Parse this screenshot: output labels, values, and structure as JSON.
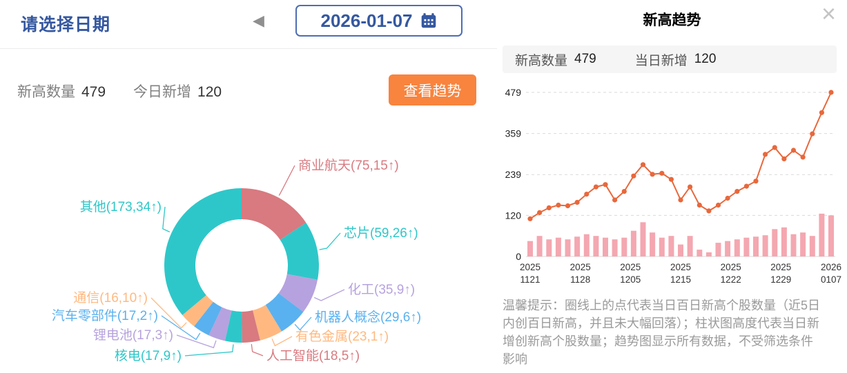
{
  "colors": {
    "primary_blue": "#3558a0",
    "button_orange": "#f8843e",
    "line_orange": "#e8683c",
    "bar_pink": "#f4a7b0",
    "teal": "#2ec7c9",
    "purple": "#b6a2de",
    "blue": "#5ab1ef",
    "orange": "#ffb980",
    "rose": "#d87a80"
  },
  "left_panel": {
    "date_picker": {
      "title": "请选择日期",
      "prev_icon": "◀",
      "date_value": "2026-01-07"
    },
    "stats": {
      "new_high_label": "新高数量",
      "new_high_value": "479",
      "today_added_label": "今日新增",
      "today_added_value": "120",
      "view_trend_button": "查看趋势"
    }
  },
  "trend_modal": {
    "title": "新高趋势",
    "close_icon": "×",
    "summary": {
      "new_high_label": "新高数量",
      "new_high_value": "479",
      "day_added_label": "当日新增",
      "day_added_value": "120"
    },
    "note": "温馨提示：圈线上的点代表当日百日新高个股数量（近5日内创百日新高，并且未大幅回落）；柱状图高度代表当日新增创新高个股数量；趋势图显示所有数据，不受筛选条件影响"
  },
  "chart_data": [
    {
      "type": "pie",
      "style": "donut",
      "total": 479,
      "segments": [
        {
          "label": "商业航天(75,15↑)",
          "name": "商业航天",
          "value": 75,
          "new": 15,
          "color": "#d87a80"
        },
        {
          "label": "芯片(59,26↑)",
          "name": "芯片",
          "value": 59,
          "new": 26,
          "color": "#2ec7c9"
        },
        {
          "label": "化工(35,9↑)",
          "name": "化工",
          "value": 35,
          "new": 9,
          "color": "#b6a2de"
        },
        {
          "label": "机器人概念(29,6↑)",
          "name": "机器人概念",
          "value": 29,
          "new": 6,
          "color": "#5ab1ef"
        },
        {
          "label": "有色金属(23,1↑)",
          "name": "有色金属",
          "value": 23,
          "new": 1,
          "color": "#ffb980"
        },
        {
          "label": "人工智能(18,5↑)",
          "name": "人工智能",
          "value": 18,
          "new": 5,
          "color": "#d87a80"
        },
        {
          "label": "核电(17,9↑)",
          "name": "核电",
          "value": 17,
          "new": 9,
          "color": "#2ec7c9"
        },
        {
          "label": "锂电池(17,3↑)",
          "name": "锂电池",
          "value": 17,
          "new": 3,
          "color": "#b6a2de"
        },
        {
          "label": "汽车零部件(17,2↑)",
          "name": "汽车零部件",
          "value": 17,
          "new": 2,
          "color": "#5ab1ef"
        },
        {
          "label": "通信(16,10↑)",
          "name": "通信",
          "value": 16,
          "new": 10,
          "color": "#ffb980"
        },
        {
          "label": "其他(173,34↑)",
          "name": "其他",
          "value": 173,
          "new": 34,
          "color": "#2ec7c9"
        }
      ]
    },
    {
      "type": "line+bar",
      "y_max": 479,
      "y_ticks": [
        0,
        120,
        239,
        359,
        479
      ],
      "x_tick_labels": [
        {
          "year": "2025",
          "date": "1121"
        },
        {
          "year": "2025",
          "date": "1128"
        },
        {
          "year": "2025",
          "date": "1205"
        },
        {
          "year": "2025",
          "date": "1215"
        },
        {
          "year": "2025",
          "date": "1222"
        },
        {
          "year": "2025",
          "date": "1229"
        },
        {
          "year": "2026",
          "date": "0107"
        }
      ],
      "series": [
        {
          "name": "当日百日新高个股数量",
          "type": "line",
          "color": "#e8683c",
          "values": [
            110,
            128,
            142,
            150,
            148,
            158,
            182,
            203,
            210,
            165,
            190,
            235,
            268,
            240,
            243,
            225,
            165,
            203,
            150,
            133,
            150,
            170,
            190,
            205,
            220,
            298,
            318,
            285,
            310,
            290,
            358,
            420,
            479
          ]
        },
        {
          "name": "当日新增创新高个股数量",
          "type": "bar",
          "color": "#f4a7b0",
          "values": [
            45,
            60,
            50,
            55,
            50,
            58,
            65,
            60,
            55,
            50,
            55,
            75,
            100,
            70,
            55,
            60,
            35,
            60,
            20,
            12,
            40,
            45,
            50,
            55,
            58,
            62,
            80,
            85,
            65,
            70,
            60,
            125,
            120
          ]
        }
      ]
    }
  ]
}
